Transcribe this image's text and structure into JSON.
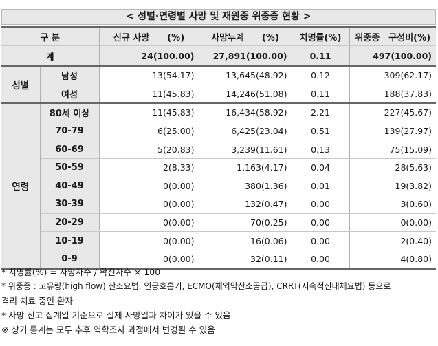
{
  "title": "< 성별·연령별 사망 및 재원중 위중증 현황 >",
  "headers": {
    "category": "구 분",
    "new_deaths": "신규 사망　　(%)",
    "cumulative_deaths": "사망누계　　(%)",
    "fatality_rate": "치명률(%)",
    "critical": "위중증　구성비(%)"
  },
  "total": {
    "label": "계",
    "new_deaths": "24(100.00)",
    "cumulative_deaths": "27,891(100.00)",
    "fatality_rate": "0.11",
    "critical": "497(100.00)"
  },
  "groups": {
    "sex": "성별",
    "age": "연령"
  },
  "sex_rows": [
    {
      "label": "남성",
      "new_deaths": "13(54.17)",
      "cumulative_deaths": "13,645(48.92)",
      "fatality_rate": "0.12",
      "critical": "309(62.17)"
    },
    {
      "label": "여성",
      "new_deaths": "11(45.83)",
      "cumulative_deaths": "14,246(51.08)",
      "fatality_rate": "0.11",
      "critical": "188(37.83)"
    }
  ],
  "age_rows": [
    {
      "label": "80세 이상",
      "new_deaths": "11(45.83)",
      "cumulative_deaths": "16,434(58.92)",
      "fatality_rate": "2.21",
      "critical": "227(45.67)"
    },
    {
      "label": "70-79",
      "new_deaths": "6(25.00)",
      "cumulative_deaths": "6,425(23.04)",
      "fatality_rate": "0.51",
      "critical": "139(27.97)"
    },
    {
      "label": "60-69",
      "new_deaths": "5(20.83)",
      "cumulative_deaths": "3,239(11.61)",
      "fatality_rate": "0.13",
      "critical": "75(15.09)"
    },
    {
      "label": "50-59",
      "new_deaths": "2(8.33)",
      "cumulative_deaths": "1,163(4.17)",
      "fatality_rate": "0.04",
      "critical": "28(5.63)"
    },
    {
      "label": "40-49",
      "new_deaths": "0(0.00)",
      "cumulative_deaths": "380(1.36)",
      "fatality_rate": "0.01",
      "critical": "19(3.82)"
    },
    {
      "label": "30-39",
      "new_deaths": "0(0.00)",
      "cumulative_deaths": "132(0.47)",
      "fatality_rate": "0.00",
      "critical": "3(0.60)"
    },
    {
      "label": "20-29",
      "new_deaths": "0(0.00)",
      "cumulative_deaths": "70(0.25)",
      "fatality_rate": "0.00",
      "critical": "0(0.00)"
    },
    {
      "label": "10-19",
      "new_deaths": "0(0.00)",
      "cumulative_deaths": "16(0.06)",
      "fatality_rate": "0.00",
      "critical": "2(0.40)"
    },
    {
      "label": "0-9",
      "new_deaths": "0(0.00)",
      "cumulative_deaths": "32(0.11)",
      "fatality_rate": "0.00",
      "critical": "4(0.80)"
    }
  ],
  "notes": [
    "* 치명률(%) = 사망자수 / 확진자수 × 100",
    "* 위중증 : 고유량(high flow) 산소요법, 인공호흡기, ECMO(체외막산소공급), CRRT(지속적신대체요법) 등으로",
    "격리 치료 중인 환자",
    "* 사망 신고 집계일 기준으로 실제 사망일과 차이가 있을 수 있음",
    "※ 상기 통계는 모두 추후 역학조사 과정에서 변경될 수 있음"
  ]
}
